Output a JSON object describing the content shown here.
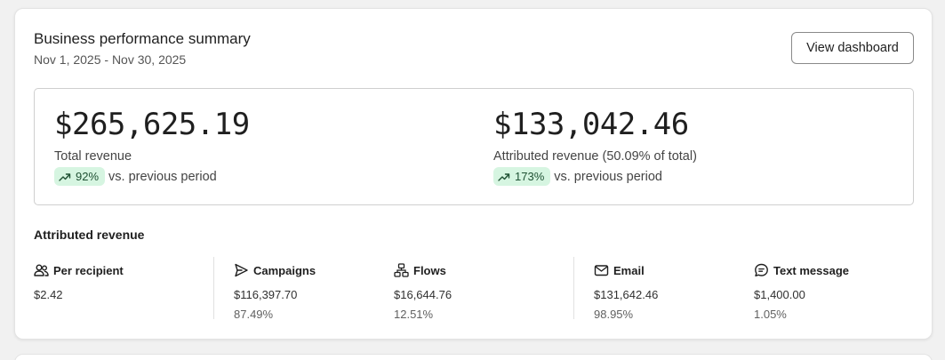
{
  "summary": {
    "title": "Business performance summary",
    "date_range": "Nov 1, 2025 - Nov 30, 2025",
    "view_dashboard_label": "View dashboard"
  },
  "kpis": {
    "total": {
      "value": "$265,625.19",
      "label": "Total revenue",
      "change": "92%",
      "change_suffix": "vs. previous period"
    },
    "attributed": {
      "value": "$133,042.46",
      "label": "Attributed revenue (50.09% of total)",
      "change": "173%",
      "change_suffix": "vs. previous period"
    }
  },
  "attributed": {
    "title": "Attributed revenue",
    "metrics": [
      {
        "label": "Per recipient",
        "icon": "people-icon",
        "value": "$2.42",
        "percent": ""
      },
      {
        "label": "Campaigns",
        "icon": "send-icon",
        "value": "$116,397.70",
        "percent": "87.49%"
      },
      {
        "label": "Flows",
        "icon": "flow-icon",
        "value": "$16,644.76",
        "percent": "12.51%"
      },
      {
        "label": "Email",
        "icon": "mail-icon",
        "value": "$131,642.46",
        "percent": "98.95%"
      },
      {
        "label": "Text message",
        "icon": "chat-icon",
        "value": "$1,400.00",
        "percent": "1.05%"
      }
    ]
  },
  "colors": {
    "badge_bg": "#d6f5e1",
    "badge_text": "#1f5133",
    "border": "#cfcfcf"
  }
}
